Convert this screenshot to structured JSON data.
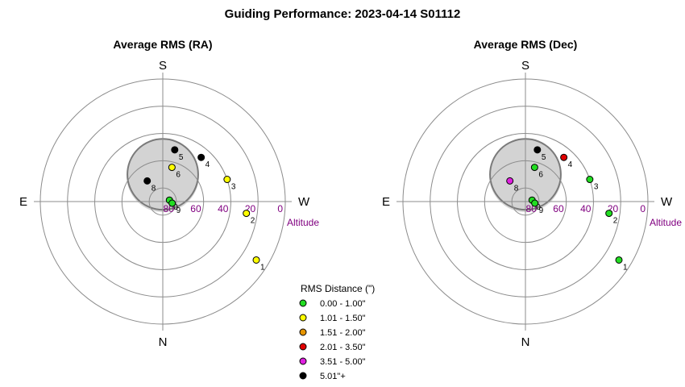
{
  "title": "Guiding Performance: 2023-04-14 S01112",
  "colors": {
    "0.00-1.00": "#22dd22",
    "1.01-1.50": "#ffff00",
    "1.51-2.00": "#e69500",
    "2.01-3.50": "#e00000",
    "3.51-5.00": "#e020e0",
    "5.01+": "#000000"
  },
  "legend": {
    "title": "RMS Distance (\")",
    "items": [
      {
        "label": "0.00 - 1.00\"",
        "key": "0.00-1.00"
      },
      {
        "label": "1.01 - 1.50\"",
        "key": "1.01-1.50"
      },
      {
        "label": "1.51 - 2.00\"",
        "key": "1.51-2.00"
      },
      {
        "label": "2.01 - 3.50\"",
        "key": "2.01-3.50"
      },
      {
        "label": "3.51 - 5.00\"",
        "key": "3.51-5.00"
      },
      {
        "label": "5.01\"+",
        "key": "5.01+"
      }
    ]
  },
  "chart_data": [
    {
      "type": "scatter",
      "projection": "polar-altaz",
      "title": "Average RMS (RA)",
      "directions": {
        "top": "S",
        "bottom": "N",
        "left": "E",
        "right": "W"
      },
      "altitude_label": "Altitude",
      "altitude_ticks": [
        80,
        60,
        40,
        20,
        0
      ],
      "rings": [
        80,
        60,
        40,
        20,
        0
      ],
      "obstruction": {
        "center_az": 0,
        "center_alt": 70,
        "radius_deg": 26
      },
      "points": [
        {
          "label": "1",
          "az": 238,
          "alt": 9,
          "category": "1.01-1.50"
        },
        {
          "label": "2",
          "az": 262,
          "alt": 28,
          "category": "1.01-1.50"
        },
        {
          "label": "3",
          "az": 289,
          "alt": 40,
          "category": "1.01-1.50"
        },
        {
          "label": "4",
          "az": 319,
          "alt": 47,
          "category": "5.01+"
        },
        {
          "label": "5",
          "az": 347,
          "alt": 51,
          "category": "5.01+"
        },
        {
          "label": "6",
          "az": 345,
          "alt": 64,
          "category": "1.01-1.50"
        },
        {
          "label": "8",
          "az": 37,
          "alt": 71,
          "category": "5.01+"
        },
        {
          "label": "0",
          "az": 282,
          "alt": 85,
          "category": "0.00-1.00"
        },
        {
          "label": "9",
          "az": 260,
          "alt": 83,
          "category": "0.00-1.00"
        }
      ]
    },
    {
      "type": "scatter",
      "projection": "polar-altaz",
      "title": "Average RMS (Dec)",
      "directions": {
        "top": "S",
        "bottom": "N",
        "left": "E",
        "right": "W"
      },
      "altitude_label": "Altitude",
      "altitude_ticks": [
        80,
        60,
        40,
        20,
        0
      ],
      "rings": [
        80,
        60,
        40,
        20,
        0
      ],
      "obstruction": {
        "center_az": 0,
        "center_alt": 70,
        "radius_deg": 26
      },
      "points": [
        {
          "label": "1",
          "az": 238,
          "alt": 9,
          "category": "0.00-1.00"
        },
        {
          "label": "2",
          "az": 262,
          "alt": 28,
          "category": "0.00-1.00"
        },
        {
          "label": "3",
          "az": 289,
          "alt": 40,
          "category": "0.00-1.00"
        },
        {
          "label": "4",
          "az": 319,
          "alt": 47,
          "category": "2.01-3.50"
        },
        {
          "label": "5",
          "az": 347,
          "alt": 51,
          "category": "5.01+"
        },
        {
          "label": "6",
          "az": 345,
          "alt": 64,
          "category": "0.00-1.00"
        },
        {
          "label": "8",
          "az": 37,
          "alt": 71,
          "category": "3.51-5.00"
        },
        {
          "label": "0",
          "az": 282,
          "alt": 85,
          "category": "0.00-1.00"
        },
        {
          "label": "9",
          "az": 260,
          "alt": 83,
          "category": "0.00-1.00"
        }
      ]
    }
  ]
}
